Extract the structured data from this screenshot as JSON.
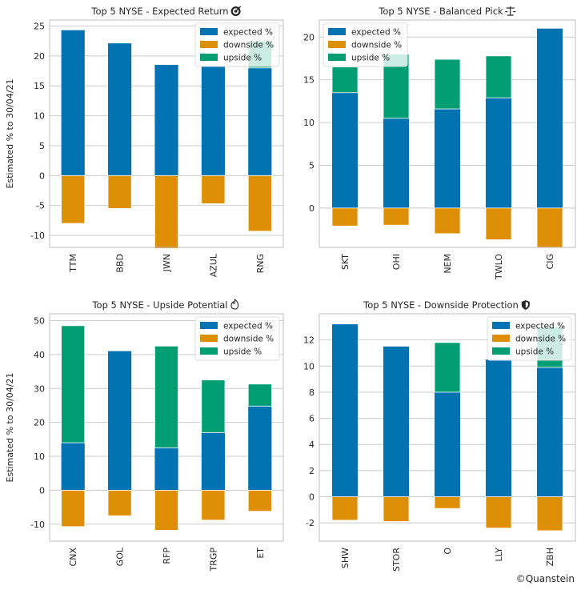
{
  "colors": {
    "expected": "#0173b2",
    "downside": "#de8f05",
    "upside": "#029e73",
    "grid": "#cccccc",
    "axis": "#bfbfbf"
  },
  "credit": "©Quanstein",
  "ylabel": "Estimated % to 30/04/21",
  "legend_labels": [
    "expected %",
    "downside %",
    "upside %"
  ],
  "chart_data": [
    {
      "type": "bar",
      "title": "Top 5 NYSE - Expected Return",
      "title_icon": "target-icon",
      "ylabel": "Estimated % to 30/04/21",
      "categories": [
        "TTM",
        "BBD",
        "JWN",
        "AZUL",
        "RNG"
      ],
      "series": [
        {
          "name": "expected %",
          "values": [
            24.3,
            22.1,
            18.5,
            18.2,
            18.0
          ]
        },
        {
          "name": "downside %",
          "values": [
            -8.0,
            -5.5,
            -12.2,
            -4.7,
            -9.3
          ]
        },
        {
          "name": "upside %",
          "values": [
            0,
            0,
            0,
            0,
            4.5
          ]
        }
      ],
      "ylim": [
        -12,
        26
      ],
      "yticks": [
        -10,
        -5,
        0,
        5,
        10,
        15,
        20,
        25
      ],
      "legend": "top-right"
    },
    {
      "type": "bar",
      "title": "Top 5 NYSE - Balanced Pick",
      "title_icon": "scales-icon",
      "ylabel": "",
      "categories": [
        "SKT",
        "OHI",
        "NEM",
        "TWLO",
        "CIG"
      ],
      "series": [
        {
          "name": "expected %",
          "values": [
            13.5,
            10.5,
            11.6,
            12.9,
            21.0
          ]
        },
        {
          "name": "downside %",
          "values": [
            -2.1,
            -2.0,
            -3.0,
            -3.7,
            -4.6
          ]
        },
        {
          "name": "upside %",
          "values": [
            3.0,
            7.5,
            5.8,
            4.9,
            0
          ]
        }
      ],
      "ylim": [
        -4.6,
        22
      ],
      "yticks": [
        0,
        5,
        10,
        15,
        20
      ],
      "legend": "top-left"
    },
    {
      "type": "bar",
      "title": "Top 5 NYSE - Upside Potential",
      "title_icon": "flame-icon",
      "ylabel": "Estimated % to 30/04/21",
      "categories": [
        "CNX",
        "GOL",
        "RFP",
        "TRGP",
        "ET"
      ],
      "series": [
        {
          "name": "expected %",
          "values": [
            14.0,
            41.0,
            12.5,
            17.0,
            24.8
          ]
        },
        {
          "name": "downside %",
          "values": [
            -10.7,
            -7.5,
            -11.8,
            -8.8,
            -6.2
          ]
        },
        {
          "name": "upside %",
          "values": [
            34.5,
            0,
            30.0,
            15.5,
            6.5
          ]
        }
      ],
      "ylim": [
        -15,
        52
      ],
      "yticks": [
        -10,
        0,
        10,
        20,
        30,
        40,
        50
      ],
      "legend": "top-right"
    },
    {
      "type": "bar",
      "title": "Top 5 NYSE - Downside Protection",
      "title_icon": "shield-icon",
      "ylabel": "",
      "categories": [
        "SHW",
        "STOR",
        "O",
        "LLY",
        "ZBH"
      ],
      "series": [
        {
          "name": "expected %",
          "values": [
            13.2,
            11.5,
            8.0,
            10.5,
            9.9
          ]
        },
        {
          "name": "downside %",
          "values": [
            -1.8,
            -1.9,
            -0.9,
            -2.4,
            -2.6
          ]
        },
        {
          "name": "upside %",
          "values": [
            0,
            0,
            3.8,
            0,
            3.1
          ]
        }
      ],
      "ylim": [
        -3.4,
        14
      ],
      "yticks": [
        -2,
        0,
        2,
        4,
        6,
        8,
        10,
        12
      ],
      "legend": "top-right"
    }
  ]
}
